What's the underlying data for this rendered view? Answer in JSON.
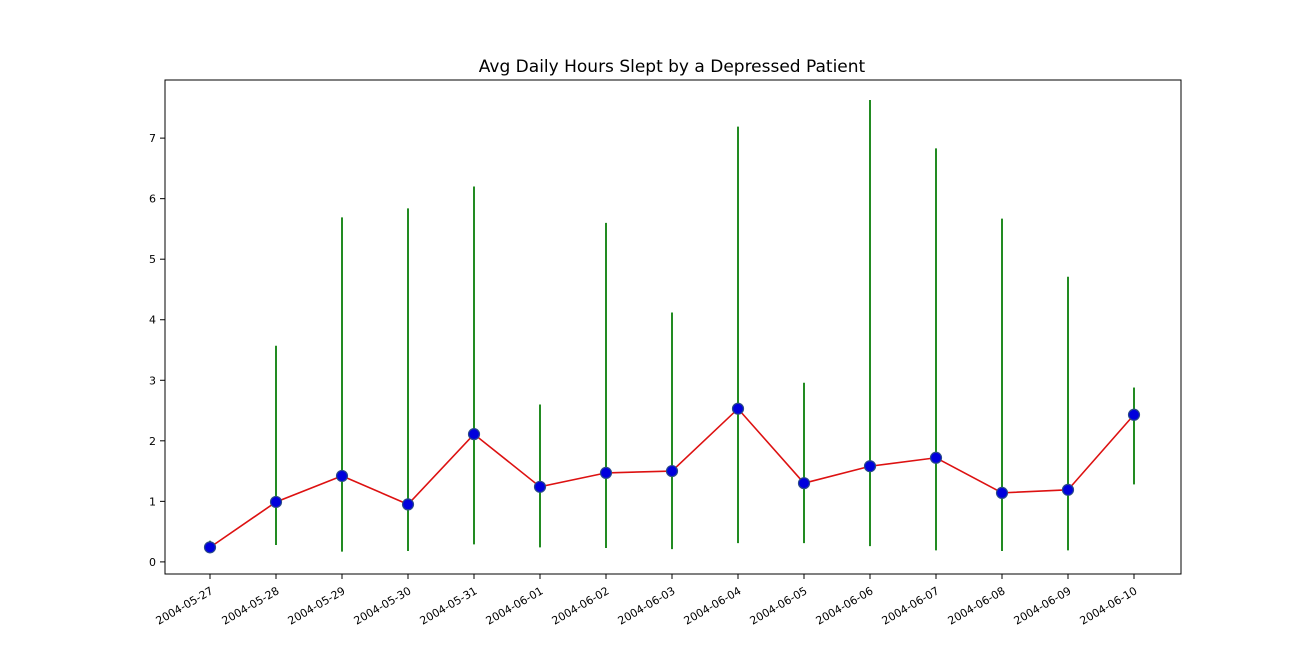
{
  "chart_data": {
    "type": "line",
    "title": "Avg Daily Hours Slept by a Depressed Patient",
    "xlabel": "",
    "ylabel": "",
    "x": [
      "2004-05-27",
      "2004-05-28",
      "2004-05-29",
      "2004-05-30",
      "2004-05-31",
      "2004-06-01",
      "2004-06-02",
      "2004-06-03",
      "2004-06-04",
      "2004-06-05",
      "2004-06-06",
      "2004-06-07",
      "2004-06-08",
      "2004-06-09",
      "2004-06-10"
    ],
    "series": [
      {
        "values": [
          0.24,
          0.99,
          1.42,
          0.95,
          2.11,
          1.24,
          1.47,
          1.5,
          2.53,
          1.3,
          1.58,
          1.72,
          1.14,
          1.19,
          2.43
        ],
        "error_low": [
          0.22,
          0.28,
          0.17,
          0.18,
          0.29,
          0.24,
          0.23,
          0.21,
          0.31,
          0.31,
          0.26,
          0.19,
          0.18,
          0.19,
          1.28
        ],
        "error_high": [
          0.35,
          3.57,
          5.69,
          5.84,
          6.2,
          2.6,
          5.6,
          4.12,
          7.19,
          2.96,
          7.63,
          6.83,
          5.67,
          4.71,
          2.88
        ]
      }
    ],
    "yticks": [
      0,
      1,
      2,
      3,
      4,
      5,
      6,
      7
    ],
    "ylim": [
      -0.2,
      7.96
    ],
    "grid": false,
    "colors": {
      "line": "#dd1111",
      "marker_fill": "#0000dd",
      "marker_edge": "#2a4a8a",
      "errorbar": "#228b22",
      "axes": "#000000"
    }
  }
}
